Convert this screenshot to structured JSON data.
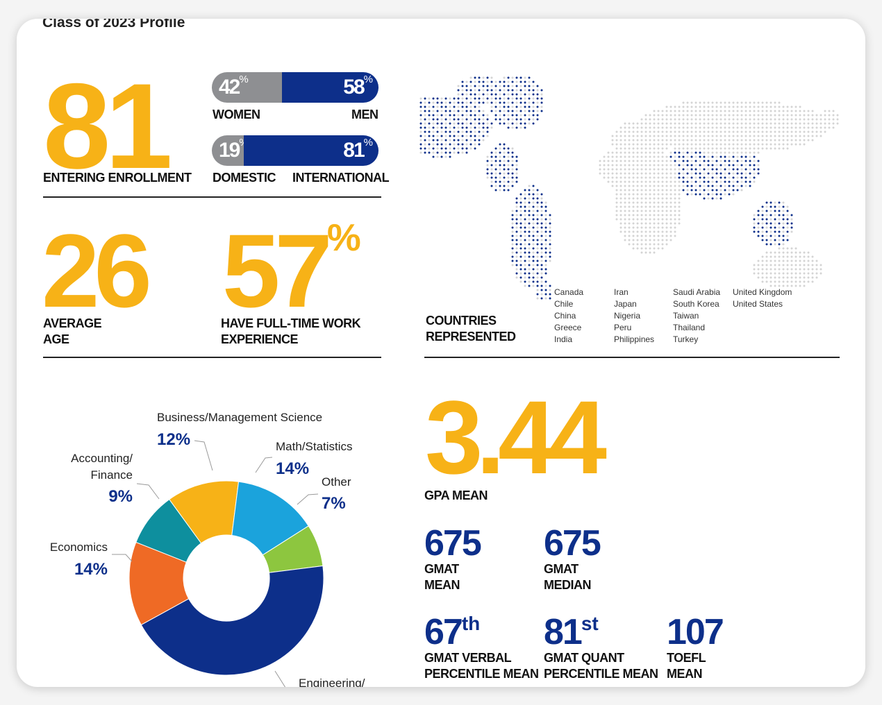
{
  "title": "Class of 2023 Profile",
  "enrollment": {
    "value": "81",
    "label": "ENTERING ENROLLMENT"
  },
  "gender": {
    "women_pct": 42,
    "men_pct": 58,
    "women_value": "42",
    "men_value": "58",
    "pct": "%",
    "women_label": "WOMEN",
    "men_label": "MEN"
  },
  "origin": {
    "domestic_pct": 19,
    "intl_pct": 81,
    "domestic_value": "19",
    "intl_value": "81",
    "pct": "%",
    "domestic_label": "DOMESTIC",
    "intl_label": "INTERNATIONAL"
  },
  "age": {
    "value": "26",
    "label1": "AVERAGE",
    "label2": "AGE"
  },
  "work": {
    "value": "57",
    "pct": "%",
    "label1": "HAVE FULL-TIME WORK",
    "label2": "EXPERIENCE"
  },
  "countries": {
    "label1": "COUNTRIES",
    "label2": "REPRESENTED",
    "columns": [
      [
        "Canada",
        "Chile",
        "China",
        "Greece",
        "India"
      ],
      [
        "Iran",
        "Japan",
        "Nigeria",
        "Peru",
        "Philippines"
      ],
      [
        "Saudi Arabia",
        "South Korea",
        "Taiwan",
        "Thailand",
        "Turkey"
      ],
      [
        "United Kingdom",
        "United States"
      ]
    ]
  },
  "gpa": {
    "value": "3.44",
    "label": "GPA MEAN"
  },
  "stats": [
    {
      "value": "675",
      "sup": "",
      "label1": "GMAT",
      "label2": "MEAN"
    },
    {
      "value": "675",
      "sup": "",
      "label1": "GMAT",
      "label2": "MEDIAN"
    },
    {
      "value": "67",
      "sup": "th",
      "label1": "GMAT VERBAL",
      "label2": "PERCENTILE MEAN"
    },
    {
      "value": "81",
      "sup": "st",
      "label1": "GMAT QUANT",
      "label2": "PERCENTILE MEAN"
    },
    {
      "value": "107",
      "sup": "",
      "label1": "TOEFL",
      "label2": "MEAN"
    }
  ],
  "chart_data": {
    "type": "pie",
    "donut": true,
    "categories": [
      "Business/Management Science",
      "Math/Statistics",
      "Other",
      "Engineering/Science",
      "Economics",
      "Accounting/Finance"
    ],
    "values": [
      12,
      14,
      7,
      44,
      14,
      9
    ],
    "labels": [
      "12%",
      "14%",
      "7%",
      "",
      "14%",
      "9%"
    ],
    "colors": [
      "#f7b217",
      "#1ba3dc",
      "#8dc63f",
      "#0d2f8a",
      "#ef6a25",
      "#0e8f9e"
    ]
  },
  "colors": {
    "yellow": "#f7b217",
    "navy": "#0d2f8a",
    "gray": "#8e8f92"
  }
}
